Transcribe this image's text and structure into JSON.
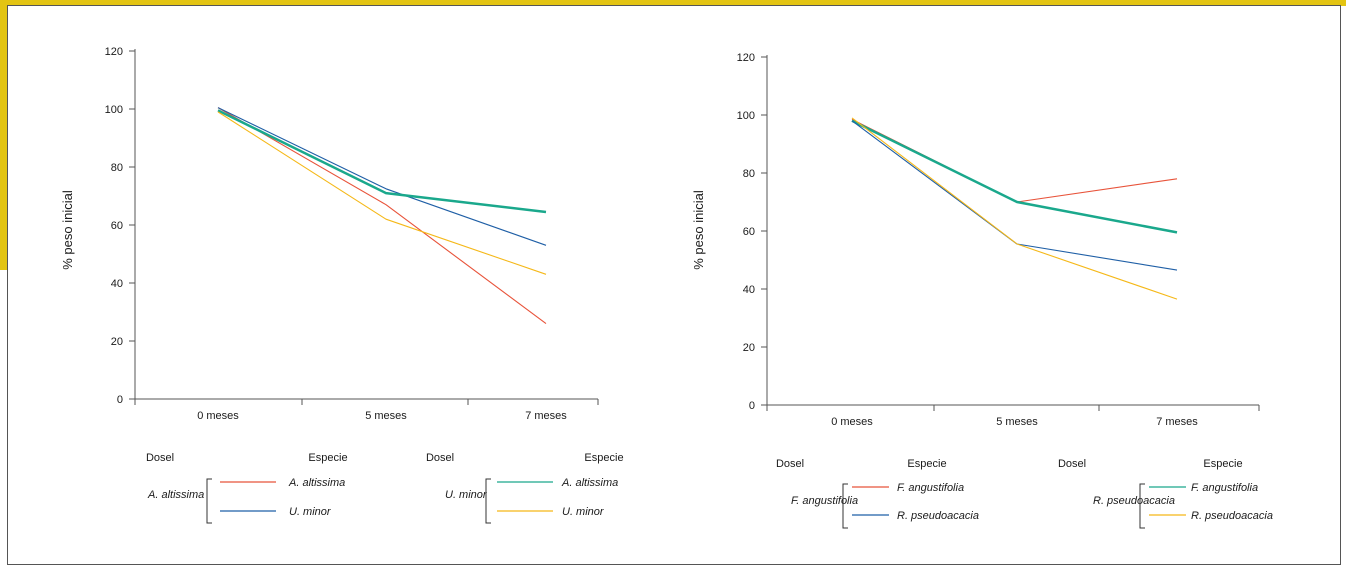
{
  "colors": {
    "frame_accent": "#e3c412",
    "red": "#e8533a",
    "blue": "#1f5fa6",
    "green": "#1aa88c",
    "yellow": "#f5b818",
    "axis": "#555555"
  },
  "chart_data": [
    {
      "type": "line",
      "title": "",
      "ylabel": "% peso inicial",
      "xlabel": "",
      "categories": [
        "0 meses",
        "5 meses",
        "7 meses"
      ],
      "yticks": [
        0,
        20,
        40,
        60,
        80,
        100,
        120
      ],
      "ylim": [
        0,
        120
      ],
      "grid": false,
      "series": [
        {
          "color": "#e8533a",
          "values": [
            100.5,
            67,
            26
          ]
        },
        {
          "color": "#1f5fa6",
          "values": [
            100.5,
            72.5,
            53
          ]
        },
        {
          "color": "#1aa88c",
          "values": [
            99.5,
            71,
            64.5
          ]
        },
        {
          "color": "#f5b818",
          "values": [
            99,
            62,
            43
          ]
        }
      ],
      "legend": {
        "dosel_header": "Dosel",
        "especie_header": "Especie",
        "groups": [
          {
            "dosel": "A. altissima",
            "items": [
              {
                "label": "A. altissima",
                "color": "#e8533a"
              },
              {
                "label": "U. minor",
                "color": "#1f5fa6"
              }
            ]
          },
          {
            "dosel": "U. minor",
            "items": [
              {
                "label": "A. altissima",
                "color": "#1aa88c"
              },
              {
                "label": "U. minor",
                "color": "#f5b818"
              }
            ]
          }
        ]
      }
    },
    {
      "type": "line",
      "title": "",
      "ylabel": "% peso inicial",
      "xlabel": "",
      "categories": [
        "0 meses",
        "5 meses",
        "7 meses"
      ],
      "yticks": [
        0,
        20,
        40,
        60,
        80,
        100,
        120
      ],
      "ylim": [
        0,
        120
      ],
      "grid": false,
      "series": [
        {
          "color": "#e8533a",
          "values": [
            98.5,
            70,
            78
          ]
        },
        {
          "color": "#1aa88c",
          "values": [
            98,
            70,
            59.5
          ]
        },
        {
          "color": "#1f5fa6",
          "values": [
            98,
            55.5,
            46.5
          ]
        },
        {
          "color": "#f5b818",
          "values": [
            99,
            55.5,
            36.5
          ]
        }
      ],
      "legend": {
        "dosel_header": "Dosel",
        "especie_header": "Especie",
        "groups": [
          {
            "dosel": "F. angustifolia",
            "items": [
              {
                "label": "F. angustifolia",
                "color": "#e8533a"
              },
              {
                "label": "R. pseudoacacia",
                "color": "#1f5fa6"
              }
            ]
          },
          {
            "dosel": "R. pseudoacacia",
            "items": [
              {
                "label": "F. angustifolia",
                "color": "#1aa88c"
              },
              {
                "label": "R. pseudoacacia",
                "color": "#f5b818"
              }
            ]
          }
        ]
      }
    }
  ]
}
